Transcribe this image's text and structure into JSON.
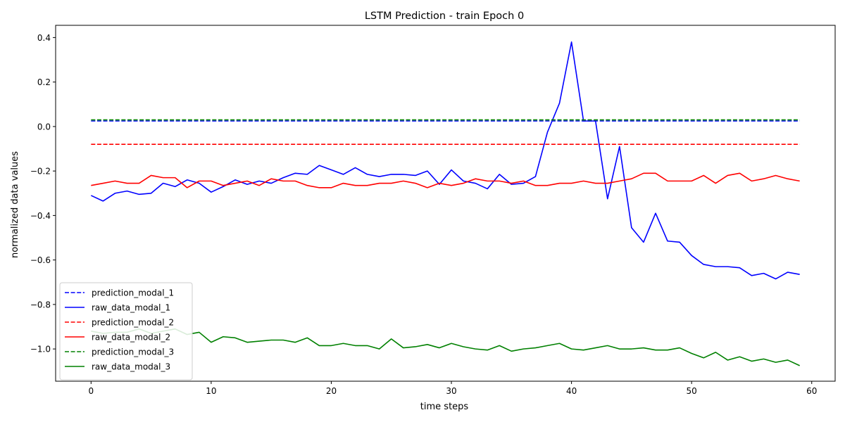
{
  "chart_data": {
    "type": "line",
    "title": "LSTM Prediction - train Epoch 0",
    "xlabel": "time steps",
    "ylabel": "normalized data values",
    "xlim": [
      -2.95,
      61.95
    ],
    "ylim": [
      -1.145,
      0.455
    ],
    "xticks": [
      0,
      10,
      20,
      30,
      40,
      50,
      60
    ],
    "xtick_labels": [
      "0",
      "10",
      "20",
      "30",
      "40",
      "50",
      "60"
    ],
    "yticks": [
      -1.0,
      -0.8,
      -0.6,
      -0.4,
      -0.2,
      0.0,
      0.2,
      0.4
    ],
    "ytick_labels": [
      "−1.0",
      "−0.8",
      "−0.6",
      "−0.4",
      "−0.2",
      "0.0",
      "0.2",
      "0.4"
    ],
    "grid": false,
    "legend_position": "lower-left",
    "series": [
      {
        "name": "prediction_modal_1",
        "color": "#0000ff",
        "dashed": true,
        "values": [
          0.025,
          0.025,
          0.025,
          0.025,
          0.025,
          0.025,
          0.025,
          0.025,
          0.025,
          0.025,
          0.025,
          0.025,
          0.025,
          0.025,
          0.025,
          0.025,
          0.025,
          0.025,
          0.025,
          0.025,
          0.025,
          0.025,
          0.025,
          0.025,
          0.025,
          0.025,
          0.025,
          0.025,
          0.025,
          0.025,
          0.025,
          0.025,
          0.025,
          0.025,
          0.025,
          0.025,
          0.025,
          0.025,
          0.025,
          0.025,
          0.025,
          0.025,
          0.025,
          0.025,
          0.025,
          0.025,
          0.025,
          0.025,
          0.025,
          0.025,
          0.025,
          0.025,
          0.025,
          0.025,
          0.025,
          0.025,
          0.025,
          0.025,
          0.025,
          0.025
        ]
      },
      {
        "name": "raw_data_modal_1",
        "color": "#0000ff",
        "dashed": false,
        "values": [
          -0.31,
          -0.335,
          -0.3,
          -0.29,
          -0.305,
          -0.3,
          -0.255,
          -0.27,
          -0.24,
          -0.255,
          -0.295,
          -0.27,
          -0.24,
          -0.26,
          -0.245,
          -0.255,
          -0.23,
          -0.21,
          -0.215,
          -0.175,
          -0.195,
          -0.215,
          -0.185,
          -0.215,
          -0.225,
          -0.215,
          -0.215,
          -0.22,
          -0.2,
          -0.26,
          -0.195,
          -0.245,
          -0.255,
          -0.28,
          -0.215,
          -0.26,
          -0.255,
          -0.225,
          -0.025,
          0.105,
          0.38,
          0.025,
          0.025,
          -0.325,
          -0.09,
          -0.455,
          -0.52,
          -0.39,
          -0.515,
          -0.52,
          -0.58,
          -0.62,
          -0.63,
          -0.63,
          -0.635,
          -0.67,
          -0.66,
          -0.685,
          -0.655,
          -0.665
        ]
      },
      {
        "name": "prediction_modal_2",
        "color": "#ff0000",
        "dashed": true,
        "values": [
          -0.08,
          -0.08,
          -0.08,
          -0.08,
          -0.08,
          -0.08,
          -0.08,
          -0.08,
          -0.08,
          -0.08,
          -0.08,
          -0.08,
          -0.08,
          -0.08,
          -0.08,
          -0.08,
          -0.08,
          -0.08,
          -0.08,
          -0.08,
          -0.08,
          -0.08,
          -0.08,
          -0.08,
          -0.08,
          -0.08,
          -0.08,
          -0.08,
          -0.08,
          -0.08,
          -0.08,
          -0.08,
          -0.08,
          -0.08,
          -0.08,
          -0.08,
          -0.08,
          -0.08,
          -0.08,
          -0.08,
          -0.08,
          -0.08,
          -0.08,
          -0.08,
          -0.08,
          -0.08,
          -0.08,
          -0.08,
          -0.08,
          -0.08,
          -0.08,
          -0.08,
          -0.08,
          -0.08,
          -0.08,
          -0.08,
          -0.08,
          -0.08,
          -0.08,
          -0.08
        ]
      },
      {
        "name": "raw_data_modal_2",
        "color": "#ff0000",
        "dashed": false,
        "values": [
          -0.265,
          -0.255,
          -0.245,
          -0.255,
          -0.255,
          -0.22,
          -0.23,
          -0.23,
          -0.275,
          -0.245,
          -0.245,
          -0.265,
          -0.255,
          -0.245,
          -0.265,
          -0.235,
          -0.245,
          -0.245,
          -0.265,
          -0.275,
          -0.275,
          -0.255,
          -0.265,
          -0.265,
          -0.255,
          -0.255,
          -0.245,
          -0.255,
          -0.275,
          -0.255,
          -0.265,
          -0.255,
          -0.235,
          -0.245,
          -0.245,
          -0.255,
          -0.245,
          -0.265,
          -0.265,
          -0.255,
          -0.255,
          -0.245,
          -0.255,
          -0.255,
          -0.245,
          -0.235,
          -0.21,
          -0.21,
          -0.245,
          -0.245,
          -0.245,
          -0.22,
          -0.255,
          -0.22,
          -0.21,
          -0.245,
          -0.235,
          -0.22,
          -0.235,
          -0.245
        ]
      },
      {
        "name": "prediction_modal_3",
        "color": "#008000",
        "dashed": true,
        "values": [
          0.03,
          0.03,
          0.03,
          0.03,
          0.03,
          0.03,
          0.03,
          0.03,
          0.03,
          0.03,
          0.03,
          0.03,
          0.03,
          0.03,
          0.03,
          0.03,
          0.03,
          0.03,
          0.03,
          0.03,
          0.03,
          0.03,
          0.03,
          0.03,
          0.03,
          0.03,
          0.03,
          0.03,
          0.03,
          0.03,
          0.03,
          0.03,
          0.03,
          0.03,
          0.03,
          0.03,
          0.03,
          0.03,
          0.03,
          0.03,
          0.03,
          0.03,
          0.03,
          0.03,
          0.03,
          0.03,
          0.03,
          0.03,
          0.03,
          0.03,
          0.03,
          0.03,
          0.03,
          0.03,
          0.03,
          0.03,
          0.03,
          0.03,
          0.03,
          0.03
        ]
      },
      {
        "name": "raw_data_modal_3",
        "color": "#008000",
        "dashed": false,
        "values": [
          -0.92,
          -0.93,
          -0.925,
          -0.925,
          -0.91,
          -0.93,
          -0.92,
          -0.91,
          -0.935,
          -0.925,
          -0.97,
          -0.945,
          -0.95,
          -0.97,
          -0.965,
          -0.96,
          -0.96,
          -0.97,
          -0.95,
          -0.985,
          -0.985,
          -0.975,
          -0.985,
          -0.985,
          -1.0,
          -0.955,
          -0.995,
          -0.99,
          -0.98,
          -0.995,
          -0.975,
          -0.99,
          -1.0,
          -1.005,
          -0.985,
          -1.01,
          -1.0,
          -0.995,
          -0.985,
          -0.975,
          -1.0,
          -1.005,
          -0.995,
          -0.985,
          -1.0,
          -1.0,
          -0.995,
          -1.005,
          -1.005,
          -0.995,
          -1.02,
          -1.04,
          -1.015,
          -1.05,
          -1.035,
          -1.055,
          -1.045,
          -1.06,
          -1.05,
          -1.075
        ]
      }
    ]
  }
}
